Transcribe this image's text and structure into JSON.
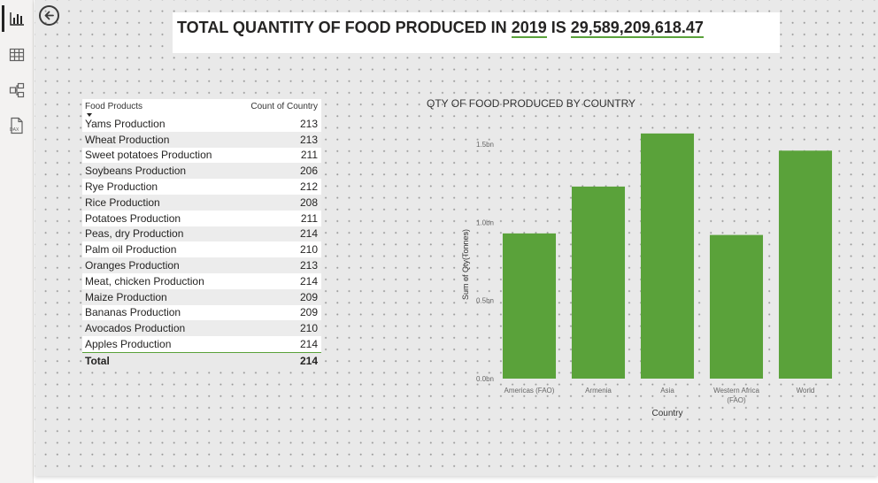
{
  "nav": {
    "icons": [
      "report-view-icon",
      "table-view-icon",
      "model-view-icon",
      "dax-query-view-icon"
    ]
  },
  "title": {
    "prefix": "TOTAL QUANTITY OF FOOD PRODUCED IN ",
    "year": "2019",
    "middle": " IS ",
    "amount": "29,589,209,618.47"
  },
  "table": {
    "headers": [
      "Food Products",
      "Count of Country"
    ],
    "rows": [
      {
        "product": "Yams Production",
        "count": "213"
      },
      {
        "product": "Wheat Production",
        "count": "213"
      },
      {
        "product": "Sweet potatoes Production",
        "count": "211"
      },
      {
        "product": "Soybeans Production",
        "count": "206"
      },
      {
        "product": "Rye Production",
        "count": "212"
      },
      {
        "product": "Rice Production",
        "count": "208"
      },
      {
        "product": "Potatoes Production",
        "count": "211"
      },
      {
        "product": "Peas, dry Production",
        "count": "214"
      },
      {
        "product": "Palm oil Production",
        "count": "210"
      },
      {
        "product": "Oranges Production",
        "count": "213"
      },
      {
        "product": "Meat, chicken Production",
        "count": "214"
      },
      {
        "product": "Maize Production",
        "count": "209"
      },
      {
        "product": "Bananas Production",
        "count": "209"
      },
      {
        "product": "Avocados Production",
        "count": "210"
      },
      {
        "product": "Apples Production",
        "count": "214"
      }
    ],
    "total_label": "Total",
    "total_value": "214"
  },
  "chart_data": {
    "type": "bar",
    "title": "QTY OF FOOD PRODUCED BY COUNTRY",
    "xlabel": "Country",
    "ylabel": "Sum of Qty(Tonnes)",
    "categories": [
      "Americas (FAO)",
      "Armenia",
      "Asia",
      "Western Africa (FAO)",
      "World"
    ],
    "values": [
      0.93,
      1.23,
      1.57,
      0.92,
      1.46
    ],
    "y_ticks": [
      "0.0bn",
      "0.5bn",
      "1.0bn",
      "1.5bn"
    ],
    "y_tick_values": [
      0,
      0.5,
      1.0,
      1.5
    ],
    "ylim": [
      0,
      1.5
    ],
    "grid": false,
    "bar_color": "#5aa23a"
  },
  "colors": {
    "accent": "#5aa23a",
    "canvas": "#e9e9e9"
  }
}
